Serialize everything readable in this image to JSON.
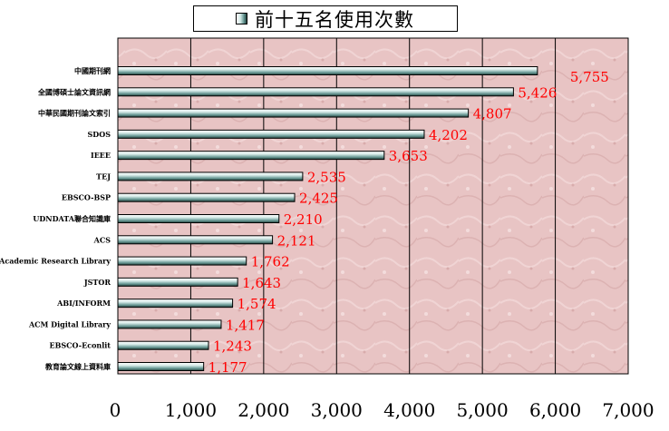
{
  "chart_data": {
    "type": "bar",
    "orientation": "horizontal",
    "legend": {
      "position": "top",
      "entries": [
        "前十五名使用次數"
      ]
    },
    "categories": [
      "中國期刊網",
      "全國博碩士論文資訊網",
      "中華民國期刊論文索引",
      "SDOS",
      "IEEE",
      "TEJ",
      "EBSCO-BSP",
      "UDNDATA聯合知識庫",
      "ACS",
      "Academic Research Library",
      "JSTOR",
      "ABI/INFORM",
      "ACM Digital Library",
      "EBSCO-Econlit",
      "教育論文線上資料庫"
    ],
    "series": [
      {
        "name": "前十五名使用次數",
        "values": [
          5755,
          5426,
          4807,
          4202,
          3653,
          2535,
          2425,
          2210,
          2121,
          1762,
          1643,
          1574,
          1417,
          1243,
          1177
        ]
      }
    ],
    "data_labels": [
      "5,755",
      "5,426",
      "4,807",
      "4,202",
      "3,653",
      "2,535",
      "2,425",
      "2,210",
      "2,121",
      "1,762",
      "1,643",
      "1,574",
      "1,417",
      "1,243",
      "1,177"
    ],
    "x_ticks": [
      0,
      1000,
      2000,
      3000,
      4000,
      5000,
      6000,
      7000
    ],
    "x_tick_labels": [
      "0",
      "1,000",
      "2,000",
      "3,000",
      "4,000",
      "5,000",
      "6,000",
      "7,000"
    ],
    "xlim": [
      0,
      7000
    ],
    "grid": "vertical",
    "colors": {
      "plot_background": "#e8c4c4",
      "bar_light": "#ffffff",
      "bar_mid": "#cfe7e4",
      "bar_dark": "#24443f",
      "data_label": "#ff0000",
      "grid": "#000000"
    }
  }
}
